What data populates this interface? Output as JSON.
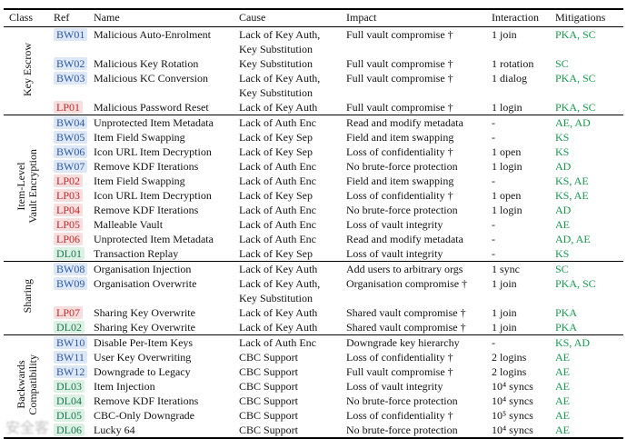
{
  "columns": [
    "Class",
    "Ref",
    "Name",
    "Cause",
    "Impact",
    "Interaction",
    "Mitigations"
  ],
  "colors": {
    "rule": "#000000",
    "bw_ref": "#2b5aa0",
    "bw_bg": "#dde7f6",
    "lp_ref": "#bf2b2b",
    "lp_bg": "#f6dede",
    "dl_ref": "#157a4c",
    "dl_bg": "#ddf0e4",
    "mitigation": "#18994d"
  },
  "watermark": {
    "text": "安全客"
  },
  "groups": [
    {
      "id": "key-escrow",
      "class_label": "Key Escrow",
      "rows": [
        {
          "ref": "BW01",
          "type": "bw",
          "name": "Malicious Auto-Enrolment",
          "cause": "Lack of Key Auth,\nKey Substitution",
          "impact": "Full vault compromise †",
          "interaction": "1 join",
          "mitigations": "PKA, SC"
        },
        {
          "ref": "BW02",
          "type": "bw",
          "name": "Malicious Key Rotation",
          "cause": "Key Substitution",
          "impact": "Full vault compromise †",
          "interaction": "1 rotation",
          "mitigations": "SC"
        },
        {
          "ref": "BW03",
          "type": "bw",
          "name": "Malicious KC Conversion",
          "cause": "Lack of Key Auth,\nKey Substitution",
          "impact": "Full vault compromise †",
          "interaction": "1 dialog",
          "mitigations": "PKA, SC"
        },
        {
          "ref": "LP01",
          "type": "lp",
          "name": "Malicious Password Reset",
          "cause": "Lack of Key Auth",
          "impact": "Full vault compromise †",
          "interaction": "1 login",
          "mitigations": "PKA, SC"
        }
      ]
    },
    {
      "id": "item-level-vault-encryption",
      "class_label": "Item-Level\nVault Encryption",
      "rows": [
        {
          "ref": "BW04",
          "type": "bw",
          "name": "Unprotected Item Metadata",
          "cause": "Lack of Auth Enc",
          "impact": "Read and modify metadata",
          "interaction": "-",
          "mitigations": "AE, AD"
        },
        {
          "ref": "BW05",
          "type": "bw",
          "name": "Item Field Swapping",
          "cause": "Lack of Key Sep",
          "impact": "Field and item swapping",
          "interaction": "-",
          "mitigations": "KS"
        },
        {
          "ref": "BW06",
          "type": "bw",
          "name": "Icon URL Item Decryption",
          "cause": "Lack of Key Sep",
          "impact": "Loss of confidentiality †",
          "interaction": "1 open",
          "mitigations": "KS"
        },
        {
          "ref": "BW07",
          "type": "bw",
          "name": "Remove KDF Iterations",
          "cause": "Lack of Auth Enc",
          "impact": "No brute-force protection",
          "interaction": "1 login",
          "mitigations": "AD"
        },
        {
          "ref": "LP02",
          "type": "lp",
          "name": "Item Field Swapping",
          "cause": "Lack of Auth Enc",
          "impact": "Field and item swapping",
          "interaction": "-",
          "mitigations": "KS, AE"
        },
        {
          "ref": "LP03",
          "type": "lp",
          "name": "Icon URL Item Decryption",
          "cause": "Lack of Key Sep",
          "impact": "Loss of confidentiality †",
          "interaction": "1 open",
          "mitigations": "KS, AE"
        },
        {
          "ref": "LP04",
          "type": "lp",
          "name": "Remove KDF Iterations",
          "cause": "Lack of Auth Enc",
          "impact": "No brute-force protection",
          "interaction": "1 login",
          "mitigations": "AD"
        },
        {
          "ref": "LP05",
          "type": "lp",
          "name": "Malleable Vault",
          "cause": "Lack of Auth Enc",
          "impact": "Loss of vault integrity",
          "interaction": "-",
          "mitigations": "AE"
        },
        {
          "ref": "LP06",
          "type": "lp",
          "name": "Unprotected Item Metadata",
          "cause": "Lack of Auth Enc",
          "impact": "Read and modify metadata",
          "interaction": "-",
          "mitigations": "AD, AE"
        },
        {
          "ref": "DL01",
          "type": "dl",
          "name": "Transaction Replay",
          "cause": "Lack of Key Sep",
          "impact": "Loss of vault integrity",
          "interaction": "-",
          "mitigations": "KS"
        }
      ]
    },
    {
      "id": "sharing",
      "class_label": "Sharing",
      "rows": [
        {
          "ref": "BW08",
          "type": "bw",
          "name": "Organisation Injection",
          "cause": "Lack of Key Auth",
          "impact": "Add users to arbitrary orgs",
          "interaction": "1 sync",
          "mitigations": "SC"
        },
        {
          "ref": "BW09",
          "type": "bw",
          "name": "Organisation Overwrite",
          "cause": "Lack of Key Auth,\nKey Substitution",
          "impact": "Organisation compromise †",
          "interaction": "1 join",
          "mitigations": "PKA, SC"
        },
        {
          "ref": "LP07",
          "type": "lp",
          "name": "Sharing Key Overwrite",
          "cause": "Lack of Key Auth",
          "impact": "Shared vault compromise †",
          "interaction": "1 join",
          "mitigations": "PKA"
        },
        {
          "ref": "DL02",
          "type": "dl",
          "name": "Sharing Key Overwrite",
          "cause": "Lack of Key Auth",
          "impact": "Shared vault compromise †",
          "interaction": "1 join",
          "mitigations": "PKA"
        }
      ]
    },
    {
      "id": "backwards-compatibility",
      "class_label": "Backwards\nCompatibility",
      "rows": [
        {
          "ref": "BW10",
          "type": "bw",
          "name": "Disable Per-Item Keys",
          "cause": "Lack of Auth Enc",
          "impact": "Downgrade key hierarchy",
          "interaction": "-",
          "mitigations": "KS, AD"
        },
        {
          "ref": "BW11",
          "type": "bw",
          "name": "User Key Overwriting",
          "cause": "CBC Support",
          "impact": "Loss of confidentiality †",
          "interaction": "2 logins",
          "mitigations": "AE"
        },
        {
          "ref": "BW12",
          "type": "bw",
          "name": "Downgrade to Legacy",
          "cause": "CBC Support",
          "impact": "Full vault compromise †",
          "interaction": "2 logins",
          "mitigations": "AE"
        },
        {
          "ref": "DL03",
          "type": "dl",
          "name": "Item Injection",
          "cause": "CBC Support",
          "impact": "Loss of vault integrity",
          "interaction": "10⁴ syncs",
          "mitigations": "AE"
        },
        {
          "ref": "DL04",
          "type": "dl",
          "name": "Remove KDF Iterations",
          "cause": "CBC Support",
          "impact": "No brute-force protection",
          "interaction": "10⁴ syncs",
          "mitigations": "AE"
        },
        {
          "ref": "DL05",
          "type": "dl",
          "name": "CBC-Only Downgrade",
          "cause": "CBC Support",
          "impact": "Loss of confidentiality †",
          "interaction": "10⁵ syncs",
          "mitigations": "AE"
        },
        {
          "ref": "DL06",
          "type": "dl",
          "name": "Lucky 64",
          "cause": "CBC Support",
          "impact": "No brute-force protection",
          "interaction": "10⁴ syncs",
          "mitigations": "AE"
        }
      ]
    }
  ]
}
